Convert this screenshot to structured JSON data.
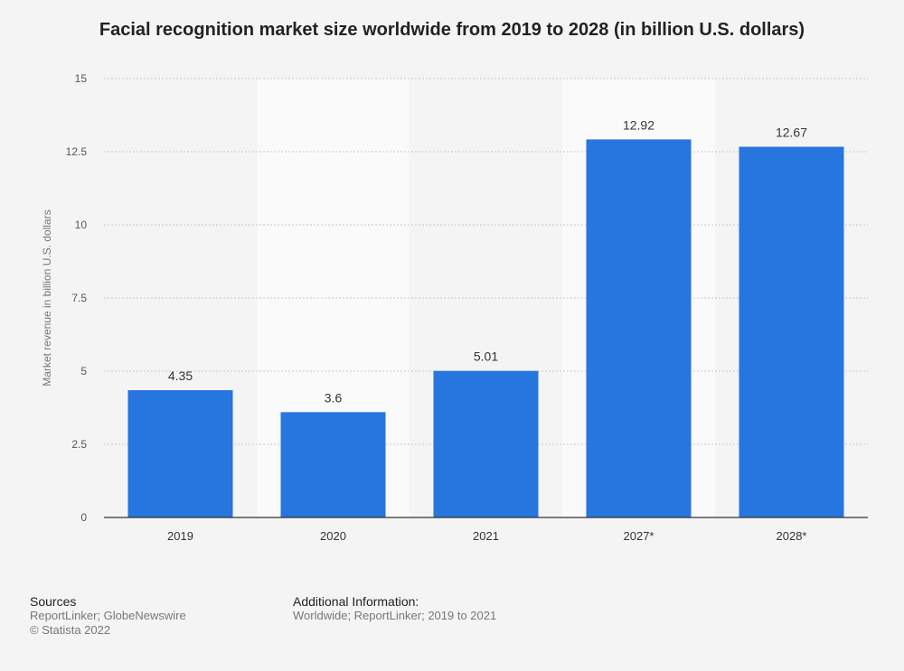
{
  "chart_data": {
    "type": "bar",
    "title": "Facial recognition market size worldwide from 2019 to 2028 (in billion U.S. dollars)",
    "xlabel": "",
    "ylabel": "Market revenue in billion U.S. dollars",
    "categories": [
      "2019",
      "2020",
      "2021",
      "2027*",
      "2028*"
    ],
    "values": [
      4.35,
      3.6,
      5.01,
      12.92,
      12.67
    ],
    "data_labels": [
      "4.35",
      "3.6",
      "5.01",
      "12.92",
      "12.67"
    ],
    "ylim": [
      0,
      15
    ],
    "yticks": [
      0,
      2.5,
      5,
      7.5,
      10,
      12.5,
      15
    ],
    "ytick_labels": [
      "0",
      "2.5",
      "5",
      "7.5",
      "10",
      "12.5",
      "15"
    ],
    "grid": true,
    "colors": {
      "bar": "#2775de",
      "band": "#fafafa"
    }
  },
  "footer": {
    "sources_title": "Sources",
    "sources_text": "ReportLinker; GlobeNewswire",
    "copyright": "© Statista 2022",
    "additional_title": "Additional Information:",
    "additional_text": "Worldwide; ReportLinker; 2019 to 2021"
  }
}
